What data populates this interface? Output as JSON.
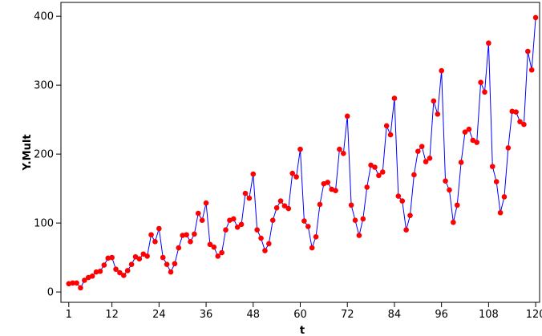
{
  "chart_data": {
    "type": "line",
    "title": "",
    "xlabel": "t",
    "ylabel": "Y.Mult",
    "xlim": [
      -1,
      121
    ],
    "ylim": [
      -15,
      420
    ],
    "x_ticks": [
      1,
      12,
      24,
      36,
      48,
      60,
      72,
      84,
      96,
      108,
      120
    ],
    "x_tick_labels": [
      "1",
      "12",
      "24",
      "36",
      "48",
      "60",
      "72",
      "84",
      "96",
      "108",
      "120"
    ],
    "y_ticks": [
      0,
      100,
      200,
      300,
      400
    ],
    "y_tick_labels": [
      "0",
      "100",
      "200",
      "300",
      "400"
    ],
    "grid": false,
    "line_color": "#0000ff",
    "marker_color": "#ff0000",
    "series": [
      {
        "x": [
          1,
          2,
          3,
          4,
          5,
          6,
          7,
          8,
          9,
          10,
          11,
          12,
          13,
          14,
          15,
          16,
          17,
          18,
          19,
          20,
          21,
          22,
          23,
          24,
          25,
          26,
          27,
          28,
          29,
          30,
          31,
          32,
          33,
          34,
          35,
          36,
          37,
          38,
          39,
          40,
          41,
          42,
          43,
          44,
          45,
          46,
          47,
          48,
          49,
          50,
          51,
          52,
          53,
          54,
          55,
          56,
          57,
          58,
          59,
          60,
          61,
          62,
          63,
          64,
          65,
          66,
          67,
          68,
          69,
          70,
          71,
          72,
          73,
          74,
          75,
          76,
          77,
          78,
          79,
          80,
          81,
          82,
          83,
          84,
          85,
          86,
          87,
          88,
          89,
          90,
          91,
          92,
          93,
          94,
          95,
          96,
          97,
          98,
          99,
          100,
          101,
          102,
          103,
          104,
          105,
          106,
          107,
          108,
          109,
          110,
          111,
          112,
          113,
          114,
          115,
          116,
          117,
          118,
          119,
          120
        ],
        "y": [
          12,
          13,
          13,
          6,
          17,
          21,
          23,
          29,
          30,
          39,
          49,
          50,
          33,
          28,
          24,
          31,
          40,
          51,
          48,
          55,
          52,
          83,
          73,
          92,
          50,
          40,
          29,
          41,
          64,
          82,
          83,
          73,
          84,
          114,
          104,
          129,
          69,
          65,
          52,
          57,
          90,
          104,
          106,
          94,
          98,
          143,
          136,
          171,
          90,
          78,
          60,
          70,
          104,
          122,
          132,
          125,
          121,
          172,
          167,
          207,
          103,
          95,
          64,
          80,
          127,
          157,
          159,
          149,
          147,
          207,
          201,
          255,
          126,
          104,
          82,
          106,
          152,
          184,
          181,
          169,
          174,
          241,
          228,
          281,
          139,
          132,
          90,
          111,
          170,
          204,
          211,
          189,
          194,
          277,
          258,
          321,
          161,
          148,
          101,
          126,
          188,
          232,
          236,
          220,
          217,
          304,
          290,
          361,
          182,
          160,
          115,
          138,
          209,
          262,
          261,
          247,
          243,
          349,
          322,
          398
        ]
      }
    ]
  }
}
